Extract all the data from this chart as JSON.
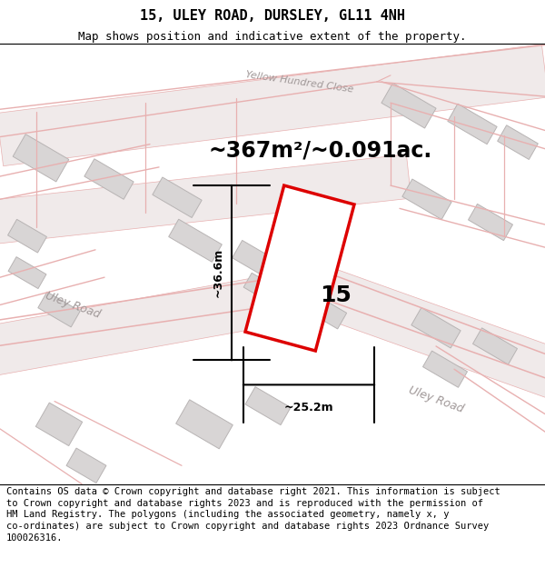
{
  "title": "15, ULEY ROAD, DURSLEY, GL11 4NH",
  "subtitle": "Map shows position and indicative extent of the property.",
  "area_text": "~367m²/~0.091ac.",
  "width_label": "~25.2m",
  "height_label": "~36.6m",
  "number_label": "15",
  "footer_text_lines": [
    "Contains OS data © Crown copyright and database right 2021. This information is subject",
    "to Crown copyright and database rights 2023 and is reproduced with the permission of",
    "HM Land Registry. The polygons (including the associated geometry, namely x, y",
    "co-ordinates) are subject to Crown copyright and database rights 2023 Ordnance Survey",
    "100026316."
  ],
  "map_bg": "#f8f5f5",
  "plot_color": "#dd0000",
  "road_color": "#e8b0b0",
  "road_fill": "#f0eaea",
  "building_fill": "#d8d5d5",
  "building_edge": "#b8b4b4",
  "label_color": "#a09898",
  "title_fontsize": 11,
  "subtitle_fontsize": 9,
  "area_fontsize": 17,
  "dim_fontsize": 9,
  "num_fontsize": 18,
  "footer_fontsize": 7.5
}
